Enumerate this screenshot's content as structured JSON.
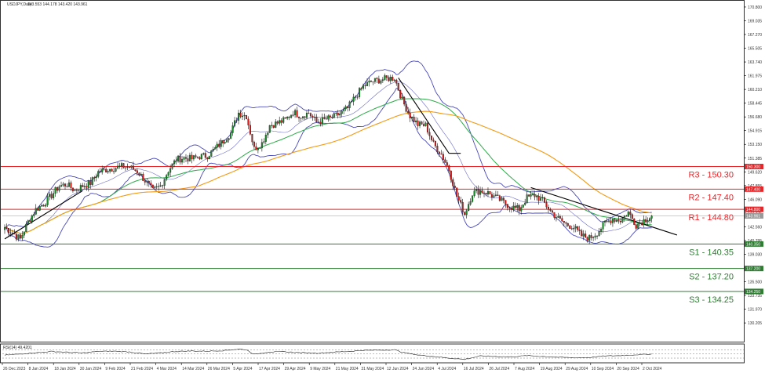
{
  "header": {
    "symbol": "USDJPY,Daily",
    "ohlc": "143.553 144.178 143.420 143.961"
  },
  "rsi_label": "RSI(14) 49.4201",
  "chart_data": {
    "type": "candlestick",
    "instrument": "USDJPY,Daily",
    "ylim": [
      128.0,
      171.5
    ],
    "y_ticks": [
      "170.800",
      "169.035",
      "167.270",
      "165.505",
      "163.740",
      "161.975",
      "160.210",
      "158.445",
      "156.680",
      "154.915",
      "153.150",
      "151.385",
      "149.620",
      "147.855",
      "146.090",
      "144.325",
      "142.560",
      "140.795",
      "139.030",
      "137.265",
      "135.500",
      "133.735",
      "131.970",
      "130.205"
    ],
    "x_ticks": [
      "26 Dec 2023",
      "8 Jan 2024",
      "18 Jan 2024",
      "30 Jan 2024",
      "9 Feb 2024",
      "21 Feb 2024",
      "4 Mar 2024",
      "14 Mar 2024",
      "26 Mar 2024",
      "5 Apr 2024",
      "17 Apr 2024",
      "29 Apr 2024",
      "9 May 2024",
      "21 May 2024",
      "31 May 2024",
      "12 Jun 2024",
      "24 Jun 2024",
      "4 Jul 2024",
      "16 Jul 2024",
      "26 Jul 2024",
      "7 Aug 2024",
      "19 Aug 2024",
      "29 Aug 2024",
      "10 Sep 2024",
      "20 Sep 2024",
      "2 Oct 2024"
    ],
    "levels": [
      {
        "label": "R3 - 150.30",
        "value": 150.3,
        "tag": "150.300",
        "color": "#e8262a"
      },
      {
        "label": "R2 - 147.40",
        "value": 147.4,
        "tag": "147.400",
        "color": "#e8262a"
      },
      {
        "label": "R1 - 144.80",
        "value": 144.8,
        "tag": "144.800",
        "color": "#e8262a"
      },
      {
        "label": "S1 - 140.35",
        "value": 140.35,
        "tag": "140.350",
        "color": "#2e7d32"
      },
      {
        "label": "S2 - 137.20",
        "value": 137.2,
        "tag": "137.200",
        "color": "#2e7d32"
      },
      {
        "label": "S3 - 134.25",
        "value": 134.25,
        "tag": "134.250",
        "color": "#2e7d32"
      }
    ],
    "current_price": {
      "value": 143.961,
      "tag": "143.961"
    },
    "price_path": [
      [
        0,
        142.5
      ],
      [
        4,
        141.8
      ],
      [
        8,
        141.0
      ],
      [
        12,
        143.2
      ],
      [
        16,
        144.8
      ],
      [
        20,
        145.5
      ],
      [
        24,
        146.6
      ],
      [
        28,
        147.8
      ],
      [
        32,
        148.0
      ],
      [
        36,
        147.2
      ],
      [
        40,
        147.8
      ],
      [
        44,
        148.2
      ],
      [
        48,
        149.6
      ],
      [
        52,
        149.9
      ],
      [
        56,
        150.1
      ],
      [
        60,
        150.3
      ],
      [
        64,
        150.2
      ],
      [
        68,
        149.7
      ],
      [
        72,
        148.5
      ],
      [
        76,
        147.2
      ],
      [
        80,
        147.8
      ],
      [
        84,
        149.8
      ],
      [
        88,
        151.2
      ],
      [
        92,
        151.4
      ],
      [
        96,
        151.3
      ],
      [
        100,
        151.6
      ],
      [
        104,
        151.7
      ],
      [
        108,
        152.6
      ],
      [
        112,
        153.6
      ],
      [
        116,
        154.6
      ],
      [
        120,
        157.2
      ],
      [
        124,
        156.8
      ],
      [
        128,
        152.6
      ],
      [
        132,
        153.3
      ],
      [
        136,
        155.6
      ],
      [
        140,
        155.9
      ],
      [
        144,
        156.3
      ],
      [
        148,
        157.3
      ],
      [
        152,
        156.8
      ],
      [
        156,
        157.2
      ],
      [
        160,
        156.0
      ],
      [
        164,
        156.3
      ],
      [
        168,
        156.6
      ],
      [
        172,
        157.1
      ],
      [
        176,
        157.8
      ],
      [
        180,
        159.3
      ],
      [
        184,
        160.6
      ],
      [
        188,
        161.2
      ],
      [
        192,
        161.4
      ],
      [
        196,
        161.6
      ],
      [
        200,
        161.7
      ],
      [
        204,
        158.8
      ],
      [
        208,
        156.8
      ],
      [
        212,
        155.7
      ],
      [
        216,
        155.6
      ],
      [
        220,
        153.2
      ],
      [
        224,
        151.9
      ],
      [
        228,
        149.9
      ],
      [
        232,
        146.5
      ],
      [
        236,
        144.2
      ],
      [
        240,
        146.9
      ],
      [
        244,
        147.2
      ],
      [
        248,
        146.9
      ],
      [
        252,
        146.3
      ],
      [
        256,
        145.7
      ],
      [
        260,
        145.1
      ],
      [
        264,
        144.8
      ],
      [
        268,
        146.3
      ],
      [
        272,
        146.6
      ],
      [
        276,
        145.9
      ],
      [
        280,
        144.6
      ],
      [
        284,
        143.6
      ],
      [
        288,
        142.9
      ],
      [
        292,
        142.5
      ],
      [
        296,
        141.4
      ],
      [
        300,
        141.1
      ],
      [
        304,
        141.8
      ],
      [
        308,
        143.0
      ],
      [
        312,
        143.6
      ],
      [
        316,
        143.4
      ],
      [
        320,
        144.4
      ],
      [
        324,
        142.8
      ],
      [
        328,
        143.4
      ],
      [
        332,
        143.961
      ]
    ],
    "rsi_path": [
      [
        0,
        44
      ],
      [
        8,
        50
      ],
      [
        16,
        56
      ],
      [
        24,
        62
      ],
      [
        32,
        58
      ],
      [
        40,
        55
      ],
      [
        48,
        62
      ],
      [
        56,
        63
      ],
      [
        64,
        60
      ],
      [
        72,
        50
      ],
      [
        80,
        55
      ],
      [
        88,
        62
      ],
      [
        96,
        64
      ],
      [
        104,
        63
      ],
      [
        112,
        66
      ],
      [
        120,
        73
      ],
      [
        124,
        70
      ],
      [
        128,
        48
      ],
      [
        136,
        60
      ],
      [
        144,
        60
      ],
      [
        152,
        56
      ],
      [
        160,
        54
      ],
      [
        168,
        58
      ],
      [
        176,
        62
      ],
      [
        184,
        67
      ],
      [
        192,
        68
      ],
      [
        200,
        70
      ],
      [
        204,
        58
      ],
      [
        212,
        45
      ],
      [
        220,
        38
      ],
      [
        228,
        30
      ],
      [
        236,
        24
      ],
      [
        244,
        40
      ],
      [
        252,
        38
      ],
      [
        260,
        36
      ],
      [
        268,
        42
      ],
      [
        276,
        38
      ],
      [
        284,
        34
      ],
      [
        292,
        32
      ],
      [
        300,
        33
      ],
      [
        308,
        40
      ],
      [
        316,
        42
      ],
      [
        324,
        46
      ],
      [
        332,
        49.4
      ]
    ],
    "rsi_levels": [
      70,
      50,
      30
    ]
  }
}
